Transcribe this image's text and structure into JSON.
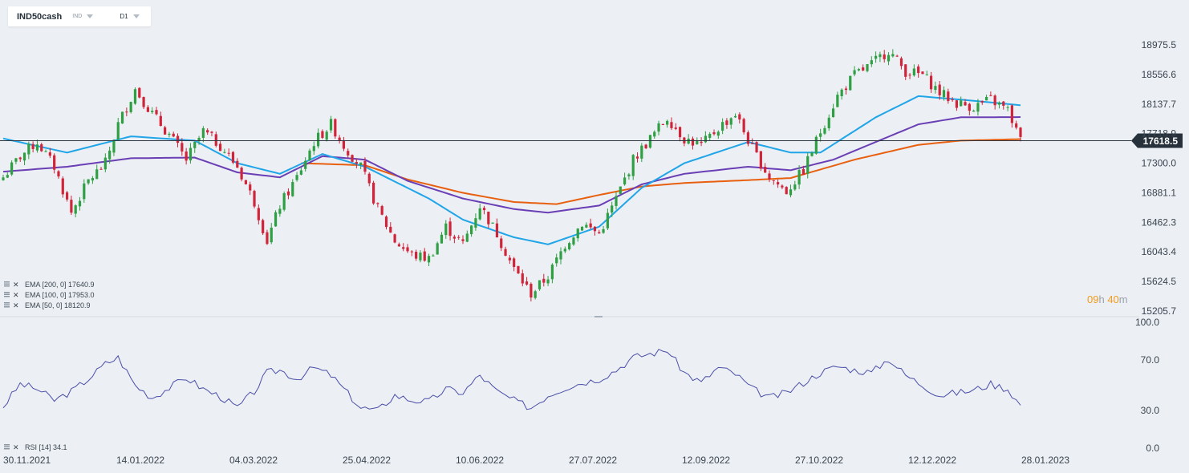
{
  "toolbar": {
    "symbol": "IND50cash",
    "market": "IND",
    "timeframe": "D1"
  },
  "countdown": {
    "hours": "09",
    "h_unit": "h",
    "minutes": "40",
    "m_unit": "m"
  },
  "colors": {
    "up": "#2ea043",
    "down": "#d0243a",
    "ema50": "#1fa5e8",
    "ema100": "#6a3fb5",
    "ema200": "#e8600f",
    "rsi": "#4b4fa8",
    "price_line": "#2d3640",
    "grid": "#d6dce3"
  },
  "legend": [
    {
      "label": "EMA [200,  0]",
      "value": "17640.9",
      "color": "#e8600f"
    },
    {
      "label": "EMA [100,  0]",
      "value": "17953.0",
      "color": "#6a3fb5"
    },
    {
      "label": "EMA [50,  0]",
      "value": "18120.9",
      "color": "#1fa5e8"
    }
  ],
  "rsi_legend": {
    "label": "RSI [14]",
    "value": "34.1"
  },
  "chart_data": {
    "type": "candlestick",
    "symbol": "IND50cash",
    "timeframe": "D1",
    "current_price": 17618.5,
    "y_ticks": [
      18975.5,
      18556.6,
      18137.7,
      17718.9,
      17300.0,
      16881.1,
      16462.3,
      16043.4,
      15624.5,
      15205.7
    ],
    "x_ticks": [
      "30.11.2021",
      "14.01.2022",
      "04.03.2022",
      "25.04.2022",
      "10.06.2022",
      "27.07.2022",
      "12.09.2022",
      "27.10.2022",
      "12.12.2022",
      "28.01.2023"
    ],
    "close_path": [
      [
        0,
        17100
      ],
      [
        4,
        17400
      ],
      [
        8,
        17600
      ],
      [
        12,
        17250
      ],
      [
        16,
        16600
      ],
      [
        20,
        17050
      ],
      [
        24,
        17300
      ],
      [
        27,
        17850
      ],
      [
        31,
        18350
      ],
      [
        35,
        18000
      ],
      [
        39,
        17700
      ],
      [
        43,
        17350
      ],
      [
        47,
        17750
      ],
      [
        51,
        17550
      ],
      [
        55,
        17250
      ],
      [
        59,
        16750
      ],
      [
        62,
        16200
      ],
      [
        65,
        16700
      ],
      [
        69,
        17100
      ],
      [
        73,
        17600
      ],
      [
        77,
        17850
      ],
      [
        80,
        17550
      ],
      [
        84,
        17250
      ],
      [
        88,
        16650
      ],
      [
        92,
        16200
      ],
      [
        96,
        16000
      ],
      [
        100,
        15950
      ],
      [
        104,
        16400
      ],
      [
        108,
        16150
      ],
      [
        112,
        16700
      ],
      [
        116,
        16300
      ],
      [
        120,
        15800
      ],
      [
        124,
        15450
      ],
      [
        128,
        15700
      ],
      [
        132,
        16150
      ],
      [
        136,
        16450
      ],
      [
        140,
        16300
      ],
      [
        144,
        16800
      ],
      [
        148,
        17350
      ],
      [
        152,
        17650
      ],
      [
        156,
        17950
      ],
      [
        160,
        17650
      ],
      [
        164,
        17550
      ],
      [
        168,
        17800
      ],
      [
        172,
        18000
      ],
      [
        176,
        17500
      ],
      [
        180,
        17100
      ],
      [
        184,
        16900
      ],
      [
        188,
        17200
      ],
      [
        192,
        17750
      ],
      [
        196,
        18250
      ],
      [
        200,
        18550
      ],
      [
        204,
        18700
      ],
      [
        208,
        18900
      ],
      [
        212,
        18600
      ],
      [
        216,
        18550
      ],
      [
        220,
        18300
      ],
      [
        224,
        18150
      ],
      [
        228,
        18100
      ],
      [
        232,
        18200
      ],
      [
        236,
        18050
      ],
      [
        239,
        17618
      ]
    ],
    "ema50_path": [
      [
        0,
        17650
      ],
      [
        15,
        17450
      ],
      [
        30,
        17680
      ],
      [
        45,
        17620
      ],
      [
        55,
        17300
      ],
      [
        65,
        17150
      ],
      [
        75,
        17430
      ],
      [
        85,
        17250
      ],
      [
        100,
        16800
      ],
      [
        108,
        16500
      ],
      [
        120,
        16250
      ],
      [
        128,
        16150
      ],
      [
        140,
        16400
      ],
      [
        150,
        16950
      ],
      [
        160,
        17300
      ],
      [
        175,
        17600
      ],
      [
        185,
        17450
      ],
      [
        192,
        17450
      ],
      [
        205,
        17950
      ],
      [
        215,
        18250
      ],
      [
        225,
        18200
      ],
      [
        239,
        18121
      ]
    ],
    "ema100_path": [
      [
        0,
        17180
      ],
      [
        15,
        17250
      ],
      [
        30,
        17370
      ],
      [
        45,
        17380
      ],
      [
        55,
        17170
      ],
      [
        65,
        17100
      ],
      [
        75,
        17400
      ],
      [
        85,
        17350
      ],
      [
        95,
        17050
      ],
      [
        108,
        16800
      ],
      [
        120,
        16650
      ],
      [
        128,
        16600
      ],
      [
        140,
        16700
      ],
      [
        150,
        17000
      ],
      [
        160,
        17150
      ],
      [
        175,
        17250
      ],
      [
        185,
        17200
      ],
      [
        195,
        17350
      ],
      [
        205,
        17600
      ],
      [
        215,
        17850
      ],
      [
        225,
        17950
      ],
      [
        239,
        17953
      ]
    ],
    "ema200_path": [
      [
        70,
        17300
      ],
      [
        85,
        17270
      ],
      [
        95,
        17070
      ],
      [
        108,
        16880
      ],
      [
        120,
        16750
      ],
      [
        130,
        16720
      ],
      [
        140,
        16850
      ],
      [
        150,
        16970
      ],
      [
        160,
        17020
      ],
      [
        175,
        17060
      ],
      [
        185,
        17090
      ],
      [
        200,
        17350
      ],
      [
        215,
        17560
      ],
      [
        225,
        17620
      ],
      [
        239,
        17641
      ]
    ],
    "rsi": {
      "label": "RSI [14]",
      "value": 34.1,
      "y_ticks": [
        100.0,
        70.0,
        30.0,
        0.0
      ],
      "path": [
        [
          0,
          33
        ],
        [
          4,
          51
        ],
        [
          8,
          47
        ],
        [
          12,
          38
        ],
        [
          16,
          45
        ],
        [
          20,
          55
        ],
        [
          24,
          67
        ],
        [
          27,
          72
        ],
        [
          31,
          50
        ],
        [
          35,
          40
        ],
        [
          39,
          48
        ],
        [
          43,
          56
        ],
        [
          47,
          47
        ],
        [
          51,
          41
        ],
        [
          55,
          32
        ],
        [
          59,
          45
        ],
        [
          62,
          60
        ],
        [
          65,
          62
        ],
        [
          69,
          55
        ],
        [
          73,
          64
        ],
        [
          77,
          58
        ],
        [
          80,
          47
        ],
        [
          84,
          32
        ],
        [
          88,
          30
        ],
        [
          92,
          42
        ],
        [
          96,
          38
        ],
        [
          100,
          37
        ],
        [
          104,
          47
        ],
        [
          108,
          44
        ],
        [
          112,
          58
        ],
        [
          116,
          45
        ],
        [
          120,
          38
        ],
        [
          124,
          32
        ],
        [
          128,
          42
        ],
        [
          132,
          48
        ],
        [
          136,
          52
        ],
        [
          140,
          55
        ],
        [
          144,
          62
        ],
        [
          148,
          72
        ],
        [
          152,
          75
        ],
        [
          156,
          78
        ],
        [
          160,
          60
        ],
        [
          164,
          52
        ],
        [
          168,
          64
        ],
        [
          172,
          59
        ],
        [
          176,
          47
        ],
        [
          180,
          40
        ],
        [
          184,
          44
        ],
        [
          188,
          52
        ],
        [
          192,
          60
        ],
        [
          196,
          65
        ],
        [
          200,
          62
        ],
        [
          204,
          60
        ],
        [
          208,
          71
        ],
        [
          212,
          58
        ],
        [
          216,
          50
        ],
        [
          220,
          42
        ],
        [
          224,
          44
        ],
        [
          228,
          46
        ],
        [
          232,
          51
        ],
        [
          236,
          47
        ],
        [
          239,
          34.1
        ]
      ]
    }
  }
}
